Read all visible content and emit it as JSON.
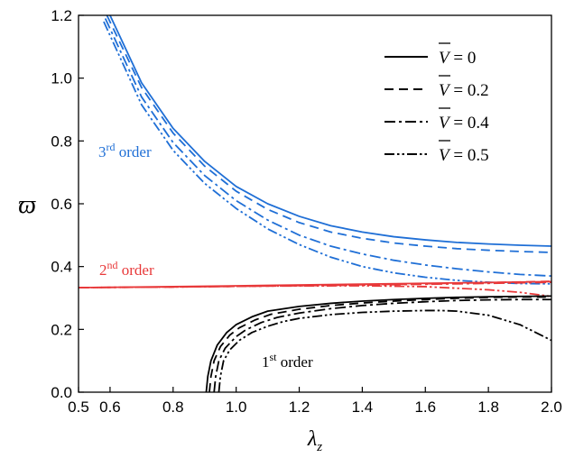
{
  "chart_data": {
    "type": "line",
    "xlabel": "λ",
    "xlabel_sub": "z",
    "ylabel": "ϖ",
    "xlim": [
      0.5,
      2.0
    ],
    "ylim": [
      0.0,
      1.2
    ],
    "xticks": [
      0.5,
      0.6,
      0.8,
      1.0,
      1.2,
      1.4,
      1.6,
      1.8,
      2.0
    ],
    "yticks": [
      0.0,
      0.2,
      0.4,
      0.6,
      0.8,
      1.0,
      1.2
    ],
    "legend": {
      "placement": "top-right",
      "entries": [
        {
          "var": "V",
          "text": " = 0",
          "dash": "solid"
        },
        {
          "var": "V",
          "text": " = 0.2",
          "dash": "dash"
        },
        {
          "var": "V",
          "text": " = 0.4",
          "dash": "dashdot"
        },
        {
          "var": "V",
          "text": " = 0.5",
          "dash": "dashdotdot"
        }
      ]
    },
    "colors": {
      "third": "#1f6fd6",
      "second": "#e8393a",
      "first": "#000000"
    },
    "annotations": [
      {
        "id": "third",
        "base": "3",
        "sup": "rd",
        "rest": " order",
        "color": "#1f6fd6"
      },
      {
        "id": "second",
        "base": "2",
        "sup": "nd",
        "rest": " order",
        "color": "#e8393a"
      },
      {
        "id": "first",
        "base": "1",
        "sup": "st",
        "rest": " order",
        "color": "#000000"
      }
    ],
    "series": [
      {
        "group": "third",
        "V": 0,
        "dash": "solid",
        "x": [
          0.6,
          0.7,
          0.8,
          0.9,
          1.0,
          1.1,
          1.2,
          1.3,
          1.4,
          1.5,
          1.6,
          1.7,
          1.8,
          1.9,
          2.0
        ],
        "y": [
          1.2,
          0.985,
          0.84,
          0.735,
          0.655,
          0.6,
          0.56,
          0.53,
          0.51,
          0.495,
          0.485,
          0.477,
          0.472,
          0.468,
          0.465
        ]
      },
      {
        "group": "third",
        "V": 0.2,
        "dash": "dash",
        "x": [
          0.59,
          0.7,
          0.8,
          0.9,
          1.0,
          1.1,
          1.2,
          1.3,
          1.4,
          1.5,
          1.6,
          1.7,
          1.8,
          1.9,
          2.0
        ],
        "y": [
          1.2,
          0.97,
          0.825,
          0.72,
          0.64,
          0.582,
          0.54,
          0.51,
          0.49,
          0.475,
          0.465,
          0.457,
          0.452,
          0.448,
          0.445
        ]
      },
      {
        "group": "third",
        "V": 0.4,
        "dash": "dashdot",
        "x": [
          0.585,
          0.7,
          0.8,
          0.9,
          1.0,
          1.1,
          1.2,
          1.3,
          1.4,
          1.5,
          1.6,
          1.7,
          1.8,
          1.9,
          2.0
        ],
        "y": [
          1.19,
          0.94,
          0.795,
          0.69,
          0.61,
          0.548,
          0.5,
          0.465,
          0.44,
          0.42,
          0.405,
          0.393,
          0.383,
          0.375,
          0.37
        ]
      },
      {
        "group": "third",
        "V": 0.5,
        "dash": "dashdotdot",
        "x": [
          0.58,
          0.7,
          0.8,
          0.9,
          1.0,
          1.1,
          1.2,
          1.3,
          1.4,
          1.5,
          1.6,
          1.7,
          1.8,
          1.9,
          2.0
        ],
        "y": [
          1.18,
          0.915,
          0.77,
          0.665,
          0.585,
          0.52,
          0.47,
          0.43,
          0.4,
          0.38,
          0.366,
          0.356,
          0.35,
          0.346,
          0.345
        ]
      },
      {
        "group": "second",
        "V": 0,
        "dash": "solid",
        "x": [
          0.5,
          0.8,
          1.1,
          1.4,
          1.7,
          2.0
        ],
        "y": [
          0.333,
          0.336,
          0.34,
          0.344,
          0.348,
          0.352
        ]
      },
      {
        "group": "second",
        "V": 0.2,
        "dash": "dash",
        "x": [
          0.5,
          0.8,
          1.1,
          1.4,
          1.7,
          2.0
        ],
        "y": [
          0.333,
          0.335,
          0.338,
          0.342,
          0.347,
          0.353
        ]
      },
      {
        "group": "second",
        "V": 0.4,
        "dash": "dashdot",
        "x": [
          0.5,
          0.8,
          1.1,
          1.4,
          1.7,
          1.9,
          2.0
        ],
        "y": [
          0.333,
          0.335,
          0.338,
          0.341,
          0.345,
          0.348,
          0.35
        ]
      },
      {
        "group": "second",
        "V": 0.5,
        "dash": "dashdotdot",
        "x": [
          0.5,
          0.8,
          1.1,
          1.4,
          1.6,
          1.8,
          1.9,
          2.0
        ],
        "y": [
          0.333,
          0.335,
          0.338,
          0.339,
          0.336,
          0.326,
          0.318,
          0.305
        ]
      },
      {
        "group": "first",
        "V": 0,
        "dash": "solid",
        "x": [
          0.905,
          0.91,
          0.92,
          0.94,
          0.97,
          1.0,
          1.05,
          1.1,
          1.2,
          1.3,
          1.4,
          1.5,
          1.6,
          1.7,
          1.8,
          1.9,
          2.0
        ],
        "y": [
          0.0,
          0.05,
          0.1,
          0.15,
          0.19,
          0.215,
          0.24,
          0.258,
          0.273,
          0.283,
          0.29,
          0.295,
          0.299,
          0.302,
          0.304,
          0.305,
          0.306
        ]
      },
      {
        "group": "first",
        "V": 0.2,
        "dash": "dash",
        "x": [
          0.915,
          0.92,
          0.93,
          0.95,
          0.98,
          1.01,
          1.06,
          1.11,
          1.2,
          1.3,
          1.4,
          1.5,
          1.6,
          1.7,
          1.8,
          1.9,
          2.0
        ],
        "y": [
          0.0,
          0.05,
          0.1,
          0.145,
          0.182,
          0.205,
          0.23,
          0.248,
          0.264,
          0.276,
          0.284,
          0.29,
          0.295,
          0.299,
          0.302,
          0.303,
          0.303
        ]
      },
      {
        "group": "first",
        "V": 0.4,
        "dash": "dashdot",
        "x": [
          0.93,
          0.935,
          0.945,
          0.965,
          1.0,
          1.03,
          1.08,
          1.13,
          1.2,
          1.3,
          1.4,
          1.5,
          1.6,
          1.7,
          1.8,
          1.9,
          2.0
        ],
        "y": [
          0.0,
          0.05,
          0.1,
          0.14,
          0.177,
          0.198,
          0.222,
          0.238,
          0.252,
          0.266,
          0.276,
          0.283,
          0.288,
          0.292,
          0.294,
          0.295,
          0.295
        ]
      },
      {
        "group": "first",
        "V": 0.5,
        "dash": "dashdotdot",
        "x": [
          0.945,
          0.95,
          0.96,
          0.98,
          1.01,
          1.05,
          1.1,
          1.15,
          1.2,
          1.3,
          1.4,
          1.5,
          1.6,
          1.65,
          1.7,
          1.8,
          1.9,
          2.0
        ],
        "y": [
          0.0,
          0.05,
          0.1,
          0.135,
          0.165,
          0.19,
          0.21,
          0.225,
          0.235,
          0.247,
          0.254,
          0.258,
          0.26,
          0.26,
          0.258,
          0.245,
          0.215,
          0.165
        ]
      }
    ]
  }
}
